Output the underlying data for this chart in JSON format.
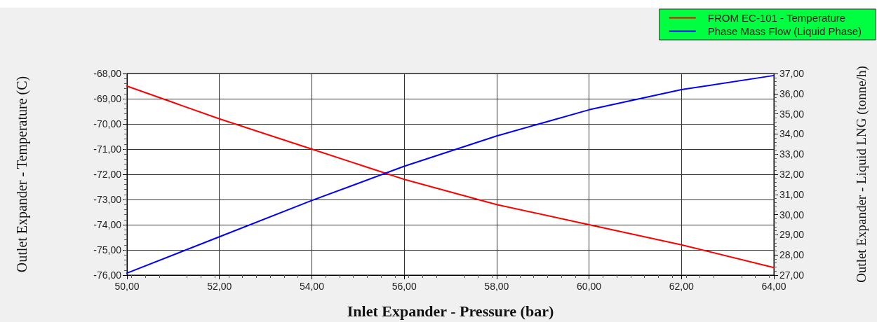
{
  "chart_data": {
    "type": "line",
    "xlabel": "Inlet Expander - Pressure (bar)",
    "ylabel": "Outlet Expander - Temperature (C)",
    "y2label": "Outlet Expander - Liquid LNG (tonne/h)",
    "x": [
      50,
      52,
      54,
      56,
      58,
      60,
      62,
      64
    ],
    "series": [
      {
        "name": "FROM EC-101 - Temperature",
        "color": "#ff0000",
        "values": [
          -68.5,
          -69.8,
          -71.0,
          -72.2,
          -73.2,
          -74.0,
          -74.8,
          -75.7
        ]
      },
      {
        "name": "Phase Mass Flow (Liquid Phase)",
        "color": "#0000ff",
        "axis": "y2",
        "values": [
          27.1,
          28.9,
          30.7,
          32.4,
          33.9,
          35.2,
          36.2,
          36.9
        ]
      }
    ],
    "xlim": [
      50,
      64
    ],
    "xticks": [
      {
        "value": 50,
        "label": "50,00"
      },
      {
        "value": 52,
        "label": "52,00"
      },
      {
        "value": 54,
        "label": "54,00"
      },
      {
        "value": 56,
        "label": "56,00"
      },
      {
        "value": 58,
        "label": "58,00"
      },
      {
        "value": 60,
        "label": "60,00"
      },
      {
        "value": 62,
        "label": "62,00"
      },
      {
        "value": 64,
        "label": "64,00"
      }
    ],
    "ylim": [
      -76,
      -68
    ],
    "yticks": [
      {
        "value": -76,
        "label": "-76,00"
      },
      {
        "value": -75,
        "label": "-75,00"
      },
      {
        "value": -74,
        "label": "-74,00"
      },
      {
        "value": -73,
        "label": "-73,00"
      },
      {
        "value": -72,
        "label": "-72,00"
      },
      {
        "value": -71,
        "label": "-71,00"
      },
      {
        "value": -70,
        "label": "-70,00"
      },
      {
        "value": -69,
        "label": "-69,00"
      },
      {
        "value": -68,
        "label": "-68,00"
      }
    ],
    "y2lim": [
      27,
      37
    ],
    "y2ticks": [
      {
        "value": 27,
        "label": "27,00"
      },
      {
        "value": 28,
        "label": "28,00"
      },
      {
        "value": 29,
        "label": "29,00"
      },
      {
        "value": 30,
        "label": "30,00"
      },
      {
        "value": 31,
        "label": "31,00"
      },
      {
        "value": 32,
        "label": "32,00"
      },
      {
        "value": 33,
        "label": "33,00"
      },
      {
        "value": 34,
        "label": "34,00"
      },
      {
        "value": 35,
        "label": "35,00"
      },
      {
        "value": 36,
        "label": "36,00"
      },
      {
        "value": 37,
        "label": "37,00"
      }
    ],
    "grid": true,
    "legend": "top right",
    "marker": "none"
  }
}
